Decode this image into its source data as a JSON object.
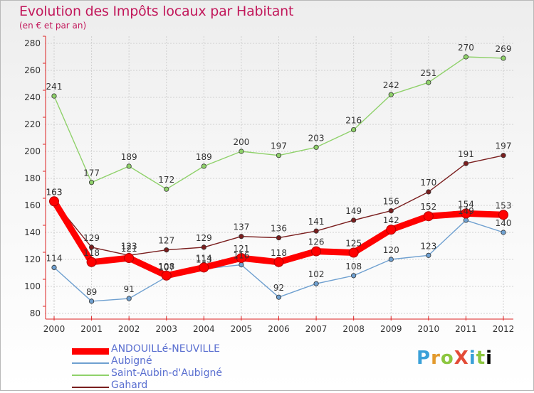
{
  "header": {
    "title": "Evolution des Impôts locaux par Habitant",
    "subtitle": "(en € et par an)"
  },
  "logo": {
    "text": "ProXiti",
    "letters": [
      "P",
      "r",
      "o",
      "X",
      "i",
      "t",
      "i"
    ]
  },
  "chart_data": {
    "type": "line",
    "title": "Evolution des Impôts locaux par Habitant",
    "subtitle": "(en € et par an)",
    "xlabel": "",
    "ylabel": "",
    "x": [
      "2000",
      "2001",
      "2002",
      "2003",
      "2004",
      "2005",
      "2006",
      "2007",
      "2008",
      "2009",
      "2010",
      "2011",
      "2012"
    ],
    "ylim": [
      80,
      280
    ],
    "yticks": [
      "80",
      "100",
      "120",
      "140",
      "160",
      "180",
      "200",
      "220",
      "240",
      "260",
      "280"
    ],
    "grid": true,
    "legend_position": "bottom-left",
    "series": [
      {
        "name": "ANDOUILLé-NEUVILLE",
        "color": "#ff0000",
        "values": [
          163,
          118,
          121,
          108,
          114,
          121,
          118,
          126,
          125,
          142,
          152,
          154,
          153
        ]
      },
      {
        "name": "Aubigné",
        "color": "#6fa0d0",
        "values": [
          114,
          89,
          91,
          107,
          113,
          116,
          92,
          102,
          108,
          120,
          123,
          149,
          140
        ]
      },
      {
        "name": "Saint-Aubin-d'Aubigné",
        "color": "#8fd16a",
        "values": [
          241,
          177,
          189,
          172,
          189,
          200,
          197,
          203,
          216,
          242,
          251,
          270,
          269
        ]
      },
      {
        "name": "Gahard",
        "color": "#7a1e1e",
        "values": [
          163,
          129,
          123,
          127,
          129,
          137,
          136,
          141,
          149,
          156,
          170,
          191,
          197
        ]
      }
    ]
  }
}
